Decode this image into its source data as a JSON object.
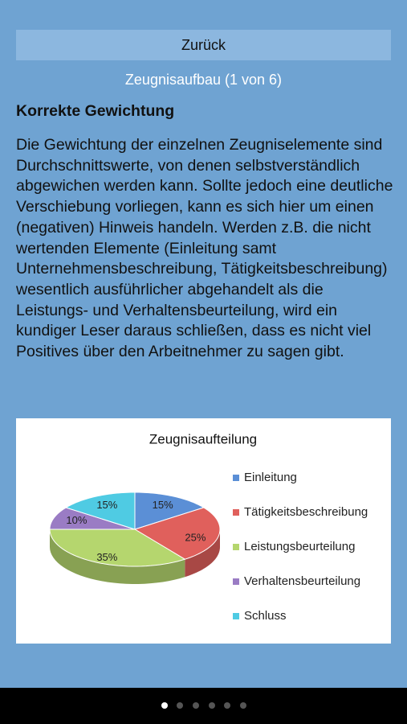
{
  "nav": {
    "back": "Zurück",
    "page_title": "Zeugnisaufbau (1 von 6)"
  },
  "content": {
    "heading": "Korrekte Gewichtung",
    "paragraph": "Die Gewichtung der einzelnen Zeugniselemente sind Durchschnittswerte, von denen selbstverständlich abgewichen werden kann. Sollte jedoch eine deutliche Verschiebung vorliegen, kann es sich hier um einen (negativen) Hinweis handeln. Werden z.B. die nicht wertenden Elemente (Einleitung samt Unternehmensbeschreibung, Tätigkeitsbeschreibung) wesentlich ausführlicher abgehandelt als die Leistungs- und Verhaltensbeurteilung, wird ein kundiger Leser daraus schließen, dass es nicht viel Positives über den Arbeitnehmer zu sagen gibt."
  },
  "chart_data": {
    "type": "pie",
    "title": "Zeugnisaufteilung",
    "categories": [
      "Einleitung",
      "Tätigkeitsbeschreibung",
      "Leistungsbeurteilung",
      "Verhaltensbeurteilung",
      "Schluss"
    ],
    "values": [
      15,
      25,
      35,
      10,
      15
    ],
    "value_labels": [
      "15%",
      "25%",
      "35%",
      "10%",
      "15%"
    ],
    "colors": [
      "#5b8fd6",
      "#e0605c",
      "#b5d66e",
      "#9a7cc4",
      "#4fcbe3"
    ],
    "legend": "right"
  }
}
